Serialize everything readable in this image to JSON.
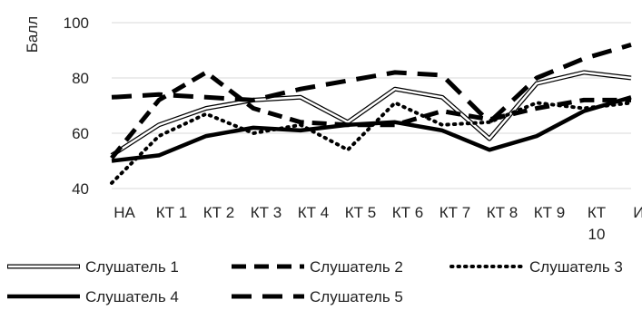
{
  "chart_data": {
    "type": "line",
    "ylabel": "Балл",
    "xlabel": "",
    "ylim": [
      40,
      100
    ],
    "yticks": [
      40,
      60,
      80,
      100
    ],
    "grid": "horizontal",
    "legend_position": "bottom",
    "categories": [
      "НА",
      "КТ 1",
      "КТ 2",
      "КТ 3",
      "КТ 4",
      "КТ 5",
      "КТ 6",
      "КТ 7",
      "КТ 8",
      "КТ 9",
      "КТ 10",
      "ИА"
    ],
    "series": [
      {
        "name": "Слушатель 1",
        "style": "double",
        "color": "#000000",
        "values": [
          52,
          63,
          69,
          72,
          73,
          64,
          76,
          73,
          58,
          78,
          82,
          80
        ]
      },
      {
        "name": "Слушатель 2",
        "style": "long-dash",
        "color": "#000000",
        "values": [
          51,
          72,
          82,
          69,
          64,
          63,
          63,
          68,
          65,
          69,
          72,
          72
        ]
      },
      {
        "name": "Слушатель 3",
        "style": "dotted",
        "color": "#000000",
        "values": [
          42,
          59,
          67,
          60,
          63,
          54,
          71,
          63,
          64,
          71,
          69,
          71
        ]
      },
      {
        "name": "Слушатель 4",
        "style": "solid-thick",
        "color": "#000000",
        "values": [
          50,
          52,
          59,
          62,
          61,
          63,
          64,
          61,
          54,
          59,
          68,
          73
        ]
      },
      {
        "name": "Слушатель 5",
        "style": "long-dash-heavy",
        "color": "#000000",
        "values": [
          73,
          74,
          73,
          72,
          76,
          79,
          82,
          81,
          64,
          80,
          87,
          92
        ]
      }
    ]
  }
}
